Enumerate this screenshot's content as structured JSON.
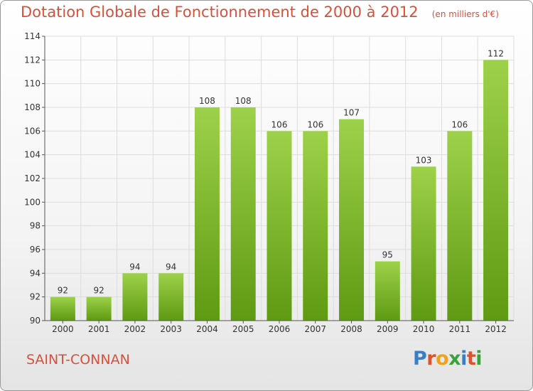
{
  "chart_data": {
    "type": "bar",
    "title": "Dotation Globale de Fonctionnement de 2000 à 2012",
    "unit": "(en milliers d'€)",
    "categories": [
      "2000",
      "2001",
      "2002",
      "2003",
      "2004",
      "2005",
      "2006",
      "2007",
      "2008",
      "2009",
      "2010",
      "2011",
      "2012"
    ],
    "values": [
      92,
      92,
      94,
      94,
      108,
      108,
      106,
      106,
      107,
      95,
      103,
      106,
      112
    ],
    "ylim": [
      90,
      114
    ],
    "yticks": [
      90,
      92,
      94,
      96,
      98,
      100,
      102,
      104,
      106,
      108,
      110,
      112,
      114
    ],
    "grid": true,
    "bar_color": "#7cbf2a",
    "xlabel": "",
    "ylabel": ""
  },
  "footer": {
    "commune": "SAINT-CONNAN"
  },
  "logo": {
    "text": "Proxiti",
    "letters": [
      {
        "ch": "P",
        "color": "#3a7fc4"
      },
      {
        "ch": "r",
        "color": "#e0522a"
      },
      {
        "ch": "o",
        "color": "#f0a21c"
      },
      {
        "ch": "x",
        "color": "#3aa23a"
      },
      {
        "ch": "i",
        "color": "#3a7fc4"
      },
      {
        "ch": "t",
        "color": "#e0522a"
      },
      {
        "ch": "i",
        "color": "#3aa23a"
      }
    ]
  },
  "colors": {
    "accent": "#d8503a",
    "grid": "#dddddd",
    "axis": "#555555"
  }
}
